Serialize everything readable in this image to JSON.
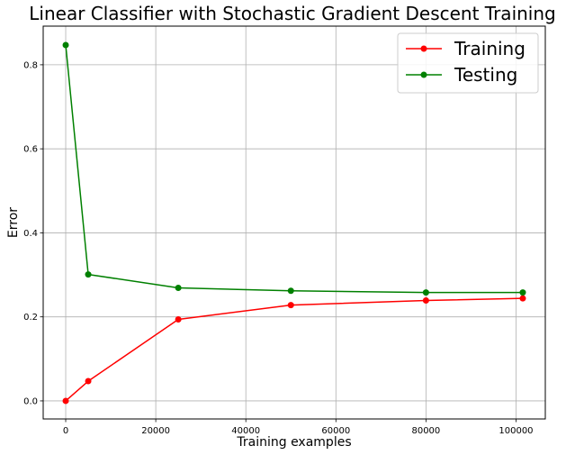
{
  "chart_data": {
    "type": "line",
    "title": "Linear Classifier with Stochastic Gradient Descent Training",
    "xlabel": "Training examples",
    "ylabel": "Error",
    "xlim": [
      -5000,
      106500
    ],
    "ylim": [
      -0.043,
      0.892
    ],
    "x_ticks": [
      0,
      20000,
      40000,
      60000,
      80000,
      100000
    ],
    "y_ticks": [
      0.0,
      0.2,
      0.4,
      0.6,
      0.8
    ],
    "grid": true,
    "legend_position": "top-right",
    "series": [
      {
        "name": "Training",
        "color": "#ff0000",
        "marker": "circle",
        "x": [
          0,
          5000,
          25000,
          50000,
          80000,
          101500
        ],
        "y": [
          0.0,
          0.047,
          0.194,
          0.228,
          0.239,
          0.244
        ]
      },
      {
        "name": "Testing",
        "color": "#008000",
        "marker": "circle",
        "x": [
          0,
          5000,
          25000,
          50000,
          80000,
          101500
        ],
        "y": [
          0.847,
          0.301,
          0.269,
          0.262,
          0.258,
          0.258
        ]
      }
    ]
  }
}
